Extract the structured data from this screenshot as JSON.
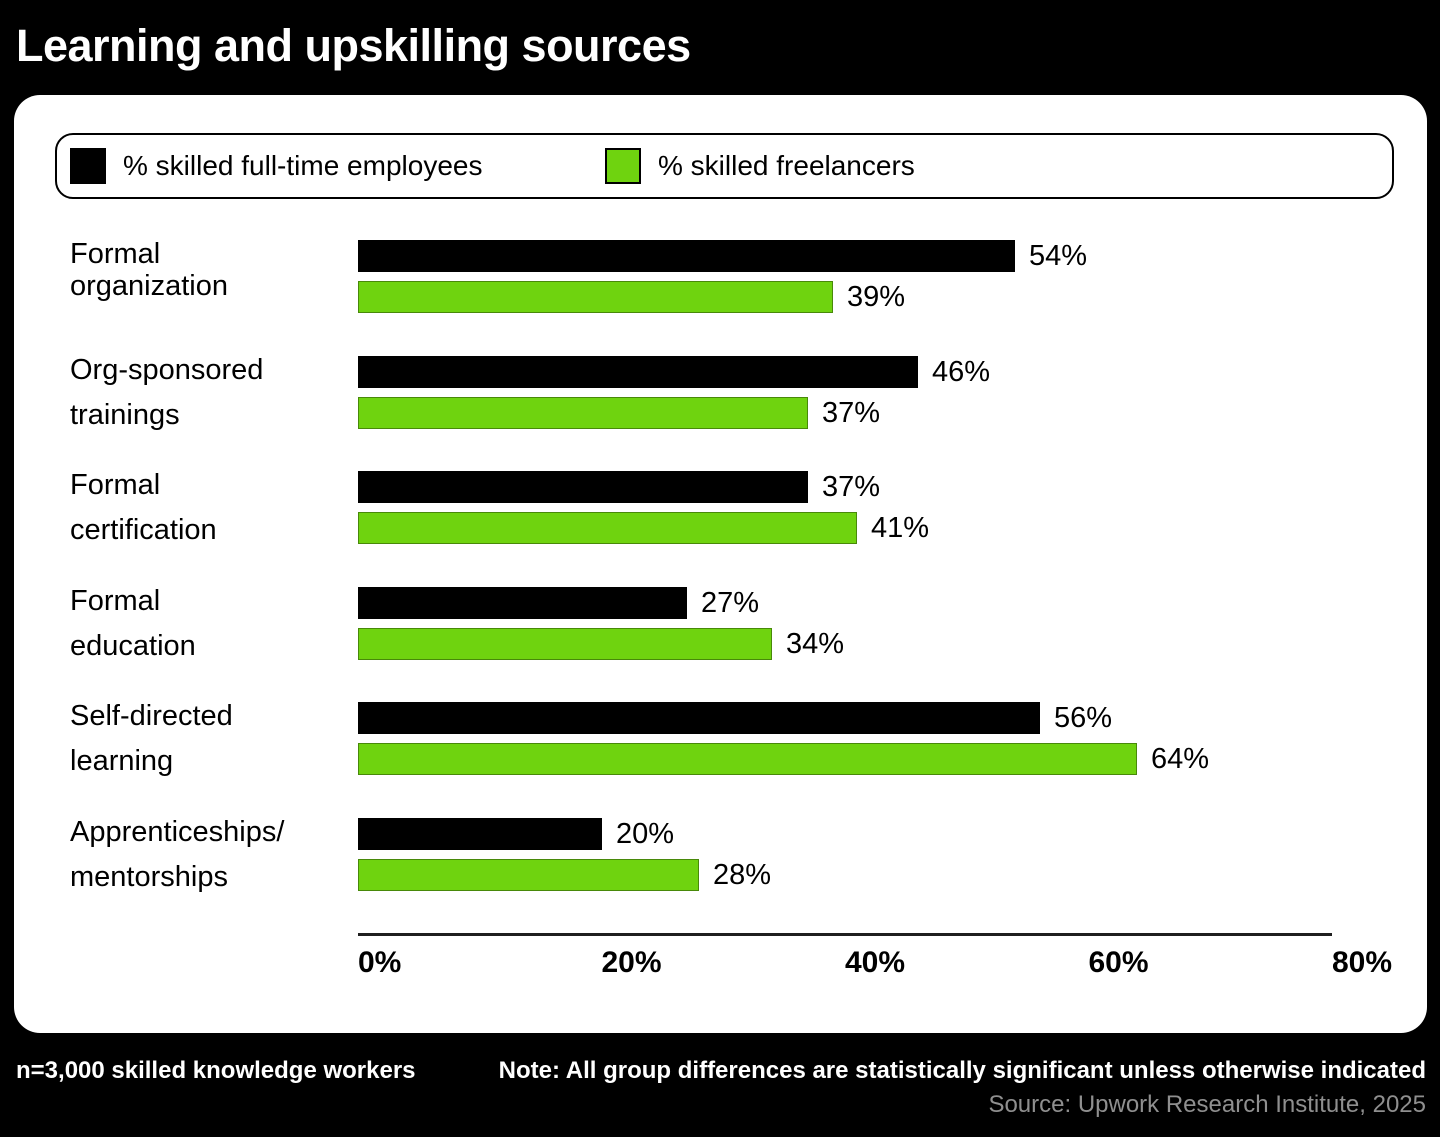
{
  "title": "Learning and upskilling sources",
  "legend": {
    "items": [
      {
        "label": "% skilled full-time employees",
        "color": "#000000"
      },
      {
        "label": "% skilled freelancers",
        "color": "#6FD30F"
      }
    ]
  },
  "chart_data": {
    "type": "bar",
    "orientation": "horizontal",
    "title": "Learning and upskilling sources",
    "categories": [
      "Formal organization",
      "Org-sponsored trainings",
      "Formal certification",
      "Formal education",
      "Self-directed learning",
      "Apprenticeships/mentorships"
    ],
    "category_lines": [
      [
        "Formal",
        "organization"
      ],
      [
        "Org-sponsored",
        "trainings"
      ],
      [
        "Formal",
        "certification"
      ],
      [
        "Formal",
        "education"
      ],
      [
        "Self-directed",
        "learning"
      ],
      [
        "Apprenticeships/",
        "mentorships"
      ]
    ],
    "series": [
      {
        "name": "% skilled full-time employees",
        "color": "#000000",
        "values": [
          54,
          46,
          37,
          27,
          56,
          20
        ]
      },
      {
        "name": "% skilled freelancers",
        "color": "#6FD30F",
        "values": [
          39,
          37,
          41,
          34,
          64,
          28
        ]
      }
    ],
    "xlim": [
      0,
      80
    ],
    "xtick_values": [
      0,
      20,
      40,
      60,
      80
    ],
    "xtick_labels": [
      "0%",
      "20%",
      "40%",
      "60%",
      "80%"
    ],
    "grid": false,
    "legend_position": "top",
    "value_label_format": "{v}%"
  },
  "footer": {
    "sample": "n=3,000 skilled knowledge workers",
    "note": "Note: All group differences are statistically significant unless otherwise indicated",
    "source": "Source: Upwork Research Institute, 2025"
  },
  "colors": {
    "background": "#000000",
    "card": "#FFFFFF",
    "employees_bar": "#000000",
    "freelancers_bar": "#6FD30F",
    "axis_line": "#1F1F1F",
    "source_text": "#8F8F8F"
  }
}
